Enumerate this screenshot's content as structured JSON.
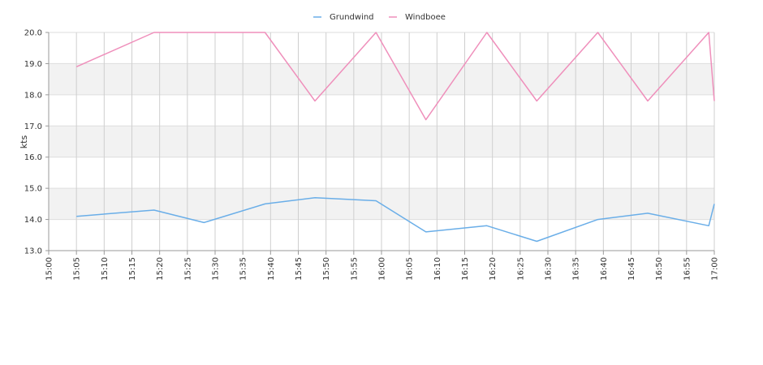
{
  "chart_data": {
    "type": "line",
    "title": "",
    "ylabel": "kts",
    "xlabel": "",
    "ylim": [
      13.0,
      20.0
    ],
    "y_ticks": [
      "13.0",
      "14.0",
      "15.0",
      "16.0",
      "17.0",
      "18.0",
      "19.0",
      "20.0"
    ],
    "x_range_minutes": [
      900,
      1020
    ],
    "x_ticks": [
      "15:00",
      "15:05",
      "15:10",
      "15:15",
      "15:20",
      "15:25",
      "15:30",
      "15:35",
      "15:40",
      "15:45",
      "15:50",
      "15:55",
      "16:00",
      "16:05",
      "16:10",
      "16:15",
      "16:20",
      "16:25",
      "16:30",
      "16:35",
      "16:40",
      "16:45",
      "16:50",
      "16:55",
      "17:00"
    ],
    "grid": true,
    "legend_position": "top-center",
    "series": [
      {
        "name": "Grundwind",
        "color": "#6aaee8",
        "points": [
          {
            "t": "15:05",
            "y": 14.1
          },
          {
            "t": "15:19",
            "y": 14.3
          },
          {
            "t": "15:28",
            "y": 13.9
          },
          {
            "t": "15:39",
            "y": 14.5
          },
          {
            "t": "15:48",
            "y": 14.7
          },
          {
            "t": "15:59",
            "y": 14.6
          },
          {
            "t": "16:08",
            "y": 13.6
          },
          {
            "t": "16:19",
            "y": 13.8
          },
          {
            "t": "16:28",
            "y": 13.3
          },
          {
            "t": "16:39",
            "y": 14.0
          },
          {
            "t": "16:48",
            "y": 14.2
          },
          {
            "t": "16:59",
            "y": 13.8
          },
          {
            "t": "17:00",
            "y": 14.5
          }
        ]
      },
      {
        "name": "Windboee",
        "color": "#ef8fbb",
        "points": [
          {
            "t": "15:05",
            "y": 18.9
          },
          {
            "t": "15:19",
            "y": 20.0
          },
          {
            "t": "15:39",
            "y": 20.0
          },
          {
            "t": "15:48",
            "y": 17.8
          },
          {
            "t": "15:59",
            "y": 20.0
          },
          {
            "t": "16:08",
            "y": 17.2
          },
          {
            "t": "16:19",
            "y": 20.0
          },
          {
            "t": "16:28",
            "y": 17.8
          },
          {
            "t": "16:39",
            "y": 20.0
          },
          {
            "t": "16:48",
            "y": 17.8
          },
          {
            "t": "16:59",
            "y": 20.0
          },
          {
            "t": "17:00",
            "y": 17.8
          }
        ]
      }
    ]
  }
}
